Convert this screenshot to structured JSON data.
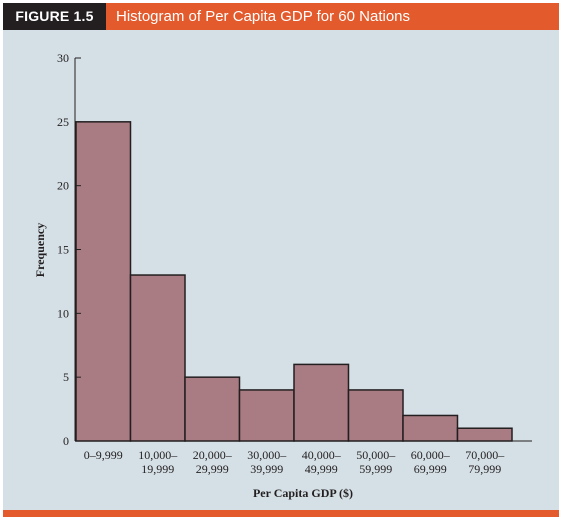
{
  "figure": {
    "label": "FIGURE 1.5",
    "title": "Histogram of Per Capita GDP for 60 Nations"
  },
  "colors": {
    "header": "#e35a2c",
    "label_bg": "#231f20",
    "panel": "#d5e0e6",
    "bar_fill": "#a97c83",
    "bar_stroke": "#231f20"
  },
  "chart_data": {
    "type": "bar",
    "title": "Histogram of Per Capita GDP for 60 Nations",
    "xlabel": "Per Capita GDP ($)",
    "ylabel": "Frequency",
    "ylim": [
      0,
      30
    ],
    "yticks": [
      0,
      5,
      10,
      15,
      20,
      25,
      30
    ],
    "grid": false,
    "categories": [
      [
        "0–9,999"
      ],
      [
        "10,000–",
        "19,999"
      ],
      [
        "20,000–",
        "29,999"
      ],
      [
        "30,000–",
        "39,999"
      ],
      [
        "40,000–",
        "49,999"
      ],
      [
        "50,000–",
        "59,999"
      ],
      [
        "60,000–",
        "69,999"
      ],
      [
        "70,000–",
        "79,999"
      ]
    ],
    "values": [
      25,
      13,
      5,
      4,
      6,
      4,
      2,
      1
    ]
  }
}
